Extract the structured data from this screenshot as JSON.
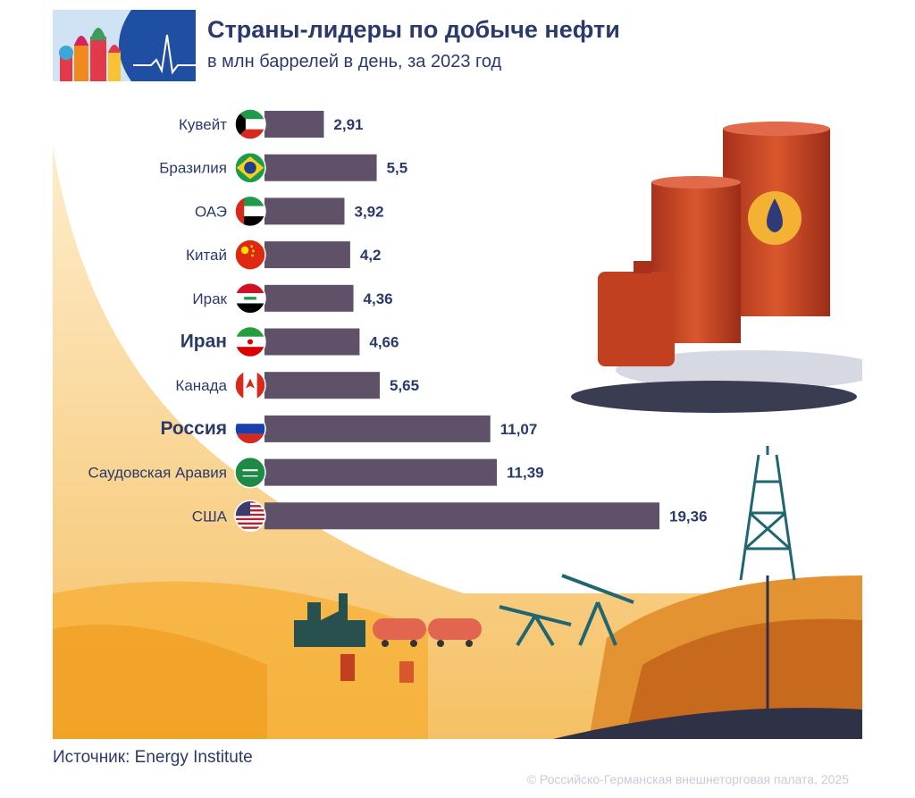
{
  "header": {
    "title": "Страны-лидеры по добыче нефти",
    "subtitle": "в млн баррелей в день, за 2023 год"
  },
  "footer": {
    "source": "Источник: Energy Institute",
    "copyright": "© Российско-Германская внешнеторговая палата, 2025"
  },
  "colors": {
    "bar": "#5e5168",
    "text": "#2b3a6b",
    "sand": "#f3b74a",
    "logo_bg": "#1f4fa3"
  },
  "chart_data": {
    "type": "bar",
    "orientation": "horizontal",
    "categories": [
      "Кувейт",
      "Бразилия",
      "ОАЭ",
      "Китай",
      "Ирак",
      "Иран",
      "Канада",
      "Россия",
      "Саудовская Аравия",
      "США"
    ],
    "values": [
      2.91,
      5.5,
      3.92,
      4.2,
      4.36,
      4.66,
      5.65,
      11.07,
      11.39,
      19.36
    ],
    "value_labels": [
      "2,91",
      "5,5",
      "3,92",
      "4,2",
      "4,36",
      "4,66",
      "5,65",
      "11,07",
      "11,39",
      "19,36"
    ],
    "highlighted": [
      "Иран",
      "Россия"
    ],
    "flags": [
      "kuwait-flag-icon",
      "brazil-flag-icon",
      "uae-flag-icon",
      "china-flag-icon",
      "iraq-flag-icon",
      "iran-flag-icon",
      "canada-flag-icon",
      "russia-flag-icon",
      "saudi-arabia-flag-icon",
      "usa-flag-icon"
    ],
    "xlim": [
      0,
      19.36
    ],
    "grid": false,
    "legend": "none"
  }
}
